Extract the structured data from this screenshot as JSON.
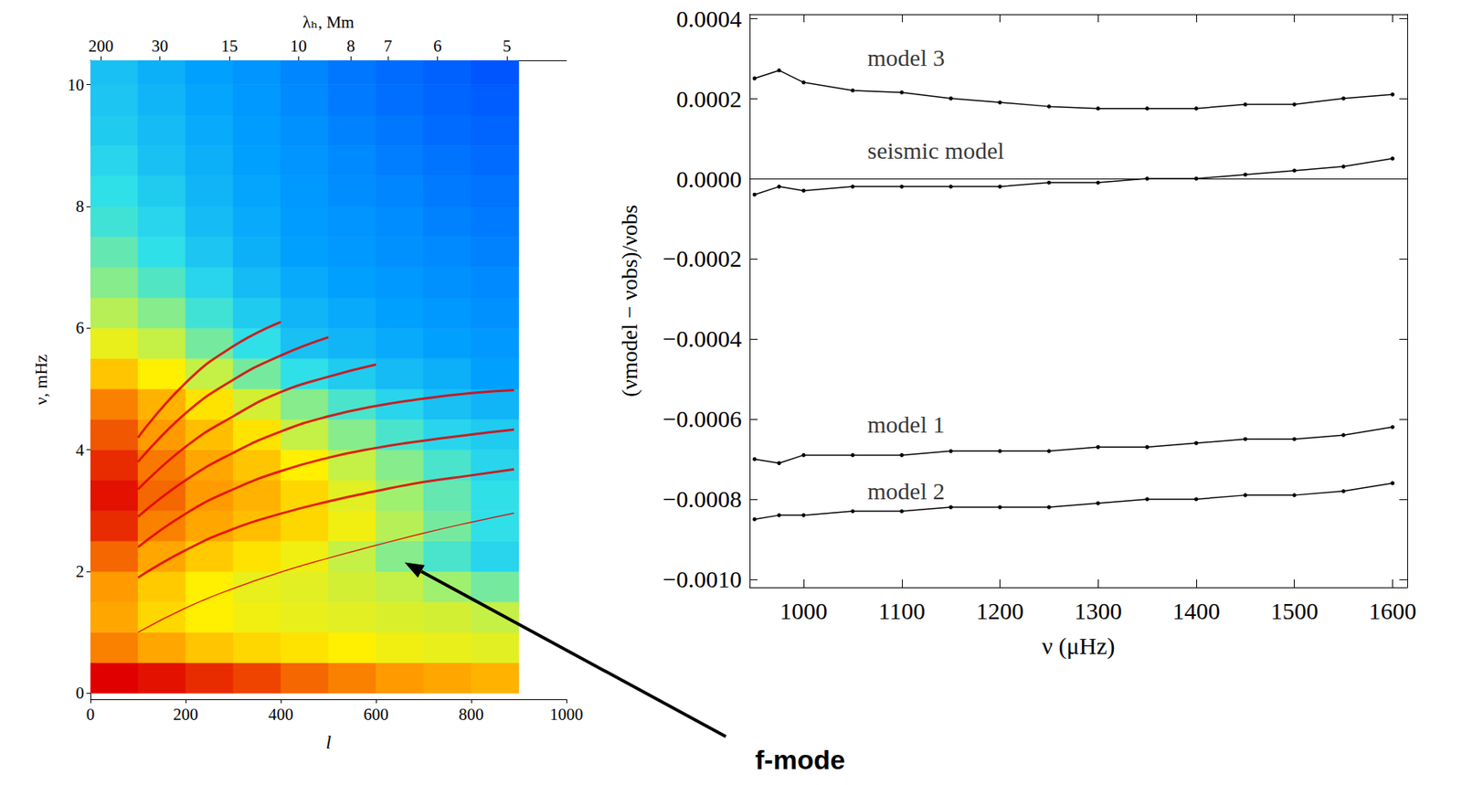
{
  "chart_data": [
    {
      "type": "heatmap",
      "x_label": "l",
      "y_label": "ν, mHz",
      "x2_label": "λₕ, Mm",
      "xlim": [
        0,
        1000
      ],
      "xticks": [
        0,
        200,
        400,
        600,
        800,
        1000
      ],
      "ylim": [
        -0.1,
        10.4
      ],
      "yticks": [
        0,
        2,
        4,
        6,
        8,
        10
      ],
      "x2lim": [
        0,
        1000
      ],
      "x2ticks": [
        {
          "value": 22,
          "label": "200"
        },
        {
          "value": 146,
          "label": "30"
        },
        {
          "value": 292,
          "label": "15"
        },
        {
          "value": 437,
          "label": "10"
        },
        {
          "value": 547,
          "label": "8"
        },
        {
          "value": 625,
          "label": "7"
        },
        {
          "value": 729,
          "label": "6"
        },
        {
          "value": 875,
          "label": "5"
        }
      ],
      "cells": {
        "l_edges": [
          0,
          100,
          200,
          300,
          400,
          500,
          600,
          700,
          800,
          900
        ],
        "nu_edges": [
          0,
          0.5,
          1,
          1.5,
          2,
          2.5,
          3,
          3.5,
          4,
          4.5,
          5,
          5.5,
          6,
          6.5,
          7,
          7.5,
          8,
          8.5,
          9,
          9.5,
          10,
          10.5
        ],
        "range": [
          0,
          1
        ],
        "intensity": [
          [
            1.0,
            0.98,
            0.95,
            0.92,
            0.88,
            0.85,
            0.82,
            0.8,
            0.78
          ],
          [
            0.85,
            0.8,
            0.75,
            0.72,
            0.7,
            0.68,
            0.66,
            0.65,
            0.64
          ],
          [
            0.8,
            0.72,
            0.68,
            0.66,
            0.65,
            0.64,
            0.63,
            0.62,
            0.6
          ],
          [
            0.82,
            0.74,
            0.68,
            0.65,
            0.64,
            0.62,
            0.6,
            0.55,
            0.5
          ],
          [
            0.88,
            0.8,
            0.74,
            0.7,
            0.66,
            0.6,
            0.52,
            0.45,
            0.4
          ],
          [
            0.95,
            0.85,
            0.8,
            0.76,
            0.72,
            0.66,
            0.58,
            0.5,
            0.42
          ],
          [
            0.98,
            0.88,
            0.82,
            0.78,
            0.72,
            0.64,
            0.55,
            0.48,
            0.42
          ],
          [
            0.95,
            0.86,
            0.8,
            0.75,
            0.68,
            0.6,
            0.52,
            0.45,
            0.4
          ],
          [
            0.9,
            0.82,
            0.76,
            0.7,
            0.6,
            0.52,
            0.45,
            0.4,
            0.38
          ],
          [
            0.85,
            0.78,
            0.7,
            0.62,
            0.52,
            0.45,
            0.4,
            0.36,
            0.34
          ],
          [
            0.75,
            0.68,
            0.6,
            0.5,
            0.42,
            0.38,
            0.35,
            0.33,
            0.3
          ],
          [
            0.65,
            0.6,
            0.5,
            0.42,
            0.36,
            0.34,
            0.32,
            0.3,
            0.28
          ],
          [
            0.58,
            0.52,
            0.44,
            0.38,
            0.34,
            0.32,
            0.3,
            0.28,
            0.26
          ],
          [
            0.52,
            0.46,
            0.4,
            0.35,
            0.32,
            0.3,
            0.28,
            0.26,
            0.24
          ],
          [
            0.48,
            0.42,
            0.37,
            0.33,
            0.3,
            0.28,
            0.26,
            0.24,
            0.22
          ],
          [
            0.44,
            0.4,
            0.35,
            0.32,
            0.29,
            0.27,
            0.25,
            0.22,
            0.2
          ],
          [
            0.42,
            0.38,
            0.34,
            0.31,
            0.28,
            0.25,
            0.23,
            0.2,
            0.18
          ],
          [
            0.4,
            0.36,
            0.33,
            0.3,
            0.27,
            0.24,
            0.21,
            0.18,
            0.16
          ],
          [
            0.38,
            0.35,
            0.32,
            0.29,
            0.26,
            0.22,
            0.19,
            0.16,
            0.14
          ],
          [
            0.37,
            0.34,
            0.31,
            0.28,
            0.24,
            0.2,
            0.17,
            0.14,
            0.12
          ],
          [
            0.36,
            0.33,
            0.3,
            0.27,
            0.23,
            0.19,
            0.16,
            0.13,
            0.1
          ]
        ]
      },
      "ridges": [
        [
          [
            100,
            1.0
          ],
          [
            200,
            1.4
          ],
          [
            300,
            1.72
          ],
          [
            400,
            1.99
          ],
          [
            500,
            2.22
          ],
          [
            600,
            2.43
          ],
          [
            700,
            2.63
          ],
          [
            800,
            2.81
          ],
          [
            890,
            2.96
          ]
        ],
        [
          [
            100,
            1.9
          ],
          [
            200,
            2.35
          ],
          [
            300,
            2.7
          ],
          [
            400,
            2.95
          ],
          [
            500,
            3.15
          ],
          [
            600,
            3.32
          ],
          [
            700,
            3.47
          ],
          [
            800,
            3.58
          ],
          [
            890,
            3.68
          ]
        ],
        [
          [
            100,
            2.4
          ],
          [
            200,
            2.95
          ],
          [
            300,
            3.35
          ],
          [
            400,
            3.65
          ],
          [
            500,
            3.87
          ],
          [
            600,
            4.03
          ],
          [
            700,
            4.15
          ],
          [
            800,
            4.25
          ],
          [
            890,
            4.33
          ]
        ],
        [
          [
            100,
            2.9
          ],
          [
            200,
            3.5
          ],
          [
            300,
            3.95
          ],
          [
            400,
            4.3
          ],
          [
            500,
            4.55
          ],
          [
            600,
            4.72
          ],
          [
            700,
            4.84
          ],
          [
            800,
            4.93
          ],
          [
            890,
            4.98
          ]
        ],
        [
          [
            100,
            3.35
          ],
          [
            200,
            4.05
          ],
          [
            300,
            4.55
          ],
          [
            400,
            4.95
          ],
          [
            500,
            5.2
          ],
          [
            600,
            5.4
          ]
        ],
        [
          [
            100,
            3.8
          ],
          [
            200,
            4.6
          ],
          [
            300,
            5.15
          ],
          [
            400,
            5.55
          ],
          [
            500,
            5.85
          ]
        ],
        [
          [
            100,
            4.2
          ],
          [
            200,
            5.1
          ],
          [
            300,
            5.7
          ],
          [
            400,
            6.1
          ]
        ]
      ],
      "color": "#e00000",
      "annotations": [
        {
          "text": "f-mode",
          "x": 660,
          "y": 2.15
        }
      ]
    },
    {
      "type": "line",
      "x_label": "ν (μHz)",
      "y_label": "(νmodel − νobs)/νobs",
      "xlim": [
        945,
        1615
      ],
      "xticks": [
        1000,
        1100,
        1200,
        1300,
        1400,
        1500,
        1600
      ],
      "ylim": [
        -0.00102,
        0.00041
      ],
      "yticks": [
        {
          "value": -0.001,
          "label": "−0.0010"
        },
        {
          "value": -0.0008,
          "label": "−0.0008"
        },
        {
          "value": -0.0006,
          "label": "−0.0006"
        },
        {
          "value": -0.0004,
          "label": "−0.0004"
        },
        {
          "value": -0.0002,
          "label": "−0.0002"
        },
        {
          "value": 0,
          "label": "0.0000"
        },
        0.0002,
        0.0004
      ],
      "marker": "circle",
      "x": [
        950,
        975,
        1000,
        1050,
        1100,
        1150,
        1200,
        1250,
        1300,
        1350,
        1400,
        1450,
        1500,
        1550,
        1600
      ],
      "series": [
        {
          "name": "model 3",
          "color": "#000000",
          "values": [
            0.00025,
            0.00027,
            0.00024,
            0.00022,
            0.000215,
            0.0002,
            0.00019,
            0.00018,
            0.000175,
            0.000175,
            0.000175,
            0.000185,
            0.000185,
            0.0002,
            0.00021
          ]
        },
        {
          "name": "seismic model",
          "color": "#000000",
          "values": [
            -4e-05,
            -2e-05,
            -3e-05,
            -2e-05,
            -2e-05,
            -2e-05,
            -2e-05,
            -1e-05,
            -1e-05,
            0.0,
            0.0,
            1e-05,
            2e-05,
            3e-05,
            5e-05
          ]
        },
        {
          "name": "model 1",
          "color": "#000000",
          "values": [
            -0.0007,
            -0.00071,
            -0.00069,
            -0.00069,
            -0.00069,
            -0.00068,
            -0.00068,
            -0.00068,
            -0.00067,
            -0.00067,
            -0.00066,
            -0.00065,
            -0.00065,
            -0.00064,
            -0.00062
          ]
        },
        {
          "name": "model 2",
          "color": "#000000",
          "values": [
            -0.00085,
            -0.00084,
            -0.00084,
            -0.00083,
            -0.00083,
            -0.00082,
            -0.00082,
            -0.00082,
            -0.00081,
            -0.0008,
            -0.0008,
            -0.00079,
            -0.00079,
            -0.00078,
            -0.00076
          ]
        }
      ],
      "annotations": [
        {
          "text": "model 3",
          "x": 1065,
          "y": 0.000302
        },
        {
          "text": "seismic model",
          "x": 1065,
          "y": 7e-05
        },
        {
          "text": "model 1",
          "x": 1065,
          "y": -0.000612
        },
        {
          "text": "model 2",
          "x": 1065,
          "y": -0.00078
        }
      ]
    }
  ]
}
